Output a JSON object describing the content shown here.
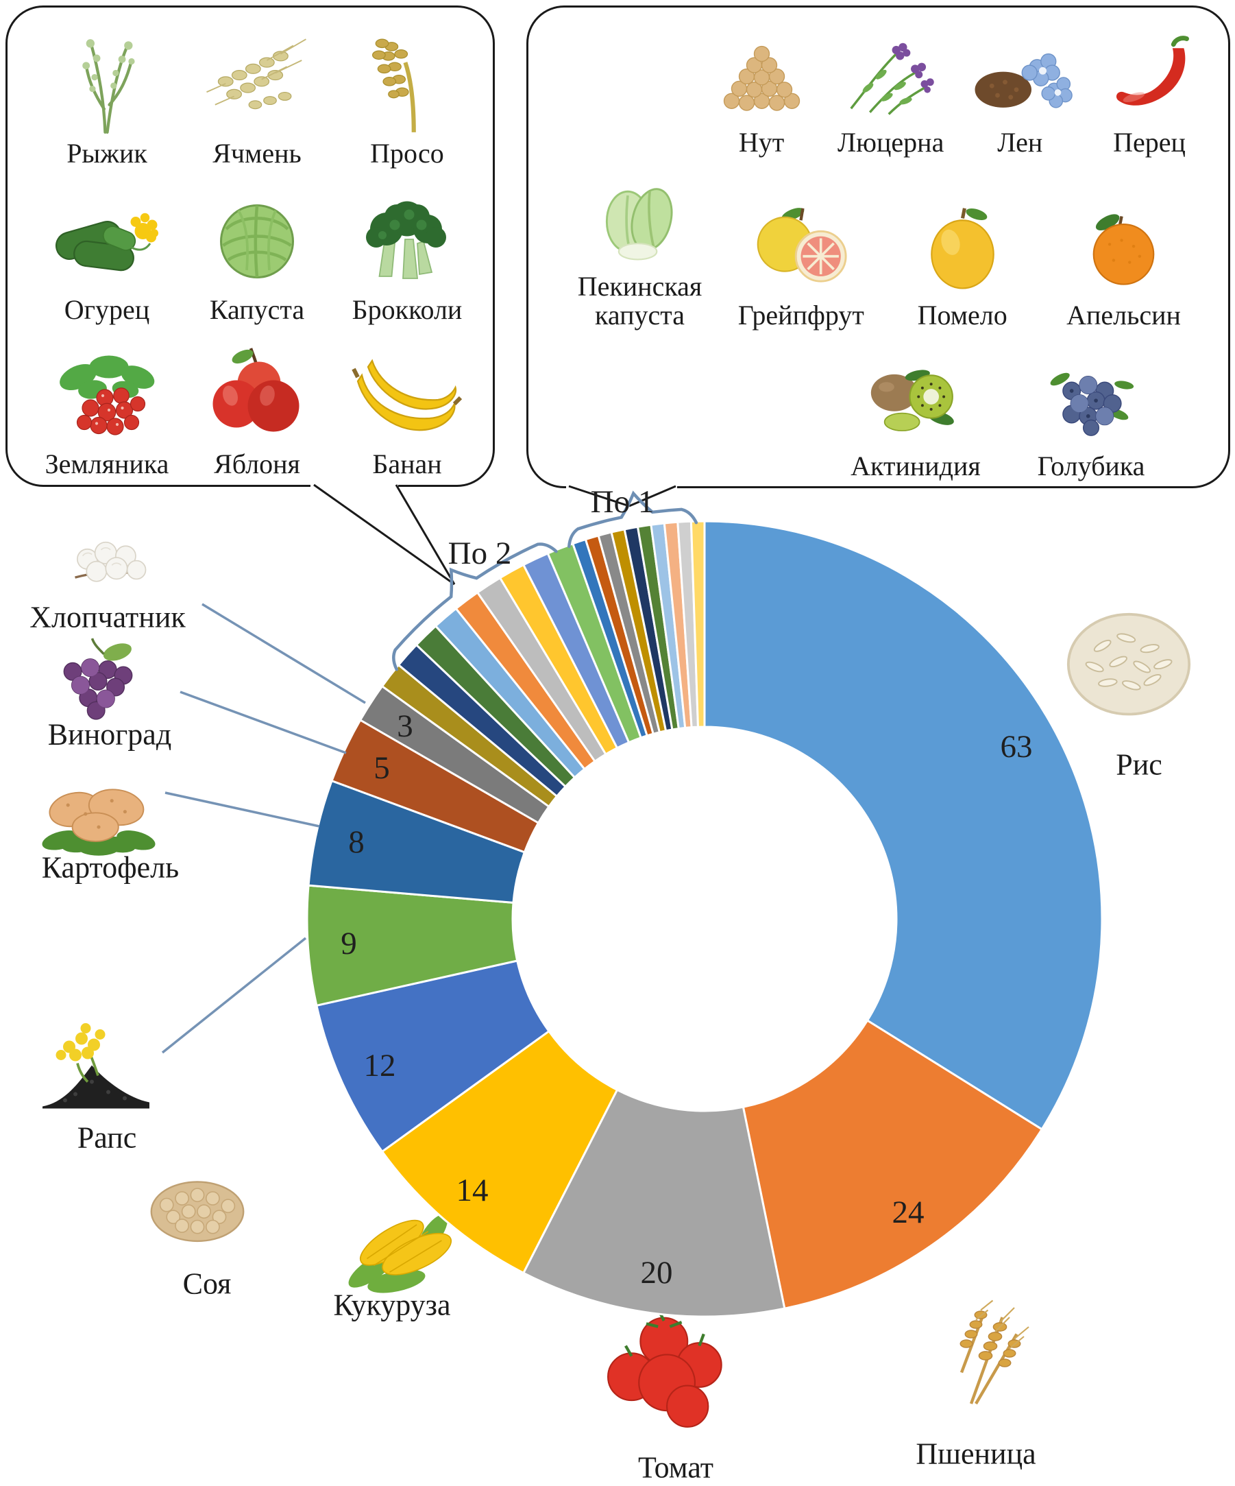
{
  "figure": {
    "callout_labels": {
      "per2": "По 2",
      "per1": "По 1"
    },
    "per2_box": {
      "items": [
        {
          "label": "Рыжик",
          "icon": "camelina-icon"
        },
        {
          "label": "Ячмень",
          "icon": "barley-icon"
        },
        {
          "label": "Просо",
          "icon": "millet-icon"
        },
        {
          "label": "Огурец",
          "icon": "cucumber-icon"
        },
        {
          "label": "Капуста",
          "icon": "cabbage-icon"
        },
        {
          "label": "Брокколи",
          "icon": "broccoli-icon"
        },
        {
          "label": "Земляника",
          "icon": "strawberry-icon"
        },
        {
          "label": "Яблоня",
          "icon": "apple-icon"
        },
        {
          "label": "Банан",
          "icon": "banana-icon"
        }
      ]
    },
    "per1_box": {
      "items": [
        {
          "label": "Нут",
          "icon": "chickpea-icon"
        },
        {
          "label": "Люцерна",
          "icon": "alfalfa-icon"
        },
        {
          "label": "Лен",
          "icon": "flax-icon"
        },
        {
          "label": "Перец",
          "icon": "pepper-icon"
        },
        {
          "label": "Пекинская капуста",
          "icon": "napa-cabbage-icon"
        },
        {
          "label": "Грейпфрут",
          "icon": "grapefruit-icon"
        },
        {
          "label": "Помело",
          "icon": "pomelo-icon"
        },
        {
          "label": "Апельсин",
          "icon": "orange-icon"
        },
        {
          "label": "Актинидия",
          "icon": "kiwi-icon"
        },
        {
          "label": "Голубика",
          "icon": "blueberry-icon"
        }
      ]
    }
  },
  "chart_data": {
    "type": "pie",
    "donut": true,
    "total": 186,
    "start": "top",
    "direction": "clockwise",
    "grouping_note_2each": "По 2",
    "grouping_note_1each": "По 1",
    "slices": [
      {
        "name": "Рис",
        "value": 63,
        "color": "#5B9BD5",
        "group": "main",
        "icon": "rice-icon"
      },
      {
        "name": "Пшеница",
        "value": 24,
        "color": "#ED7D31",
        "group": "main",
        "icon": "wheat-icon"
      },
      {
        "name": "Томат",
        "value": 20,
        "color": "#A5A5A5",
        "group": "main",
        "icon": "tomato-icon"
      },
      {
        "name": "Кукуруза",
        "value": 14,
        "color": "#FFC000",
        "group": "main",
        "icon": "corn-icon"
      },
      {
        "name": "Соя",
        "value": 12,
        "color": "#4472C4",
        "group": "main",
        "icon": "soy-icon"
      },
      {
        "name": "Рапс",
        "value": 9,
        "color": "#70AD47",
        "group": "main",
        "icon": "rapeseed-icon"
      },
      {
        "name": "Картофель",
        "value": 8,
        "color": "#2A66A0",
        "group": "main",
        "icon": "potato-icon"
      },
      {
        "name": "Виноград",
        "value": 5,
        "color": "#AE5021",
        "group": "main",
        "icon": "grapes-icon"
      },
      {
        "name": "Хлопчатник",
        "value": 3,
        "color": "#7B7B7B",
        "group": "main",
        "icon": "cotton-icon"
      },
      {
        "name": "Рыжик",
        "value": 2,
        "color": "#A98E1C",
        "group": "per2"
      },
      {
        "name": "Ячмень",
        "value": 2,
        "color": "#26477F",
        "group": "per2"
      },
      {
        "name": "Просо",
        "value": 2,
        "color": "#4A7C38",
        "group": "per2"
      },
      {
        "name": "Огурец",
        "value": 2,
        "color": "#7CAFDD",
        "group": "per2"
      },
      {
        "name": "Капуста",
        "value": 2,
        "color": "#F08A3C",
        "group": "per2"
      },
      {
        "name": "Брокколи",
        "value": 2,
        "color": "#BDBDBD",
        "group": "per2"
      },
      {
        "name": "Земляника",
        "value": 2,
        "color": "#FFC62E",
        "group": "per2"
      },
      {
        "name": "Яблоня",
        "value": 2,
        "color": "#6F92D4",
        "group": "per2"
      },
      {
        "name": "Банан",
        "value": 2,
        "color": "#82C162",
        "group": "per2"
      },
      {
        "name": "Нут",
        "value": 1,
        "color": "#3376BC",
        "group": "per1"
      },
      {
        "name": "Люцерна",
        "value": 1,
        "color": "#C55A11",
        "group": "per1"
      },
      {
        "name": "Лен",
        "value": 1,
        "color": "#898989",
        "group": "per1"
      },
      {
        "name": "Перец",
        "value": 1,
        "color": "#BF8F00",
        "group": "per1"
      },
      {
        "name": "Пекинская капуста",
        "value": 1,
        "color": "#1F3864",
        "group": "per1"
      },
      {
        "name": "Грейпфрут",
        "value": 1,
        "color": "#548235",
        "group": "per1"
      },
      {
        "name": "Помело",
        "value": 1,
        "color": "#9DC3E6",
        "group": "per1"
      },
      {
        "name": "Апельсин",
        "value": 1,
        "color": "#F4B183",
        "group": "per1"
      },
      {
        "name": "Актинидия",
        "value": 1,
        "color": "#CFCFCF",
        "group": "per1"
      },
      {
        "name": "Голубика",
        "value": 1,
        "color": "#FFD966",
        "group": "per1"
      }
    ],
    "colors": {
      "connector_blue": "#7593B5",
      "callout_black": "#1a1a1a",
      "slice_gap_white": "#ffffff"
    }
  }
}
